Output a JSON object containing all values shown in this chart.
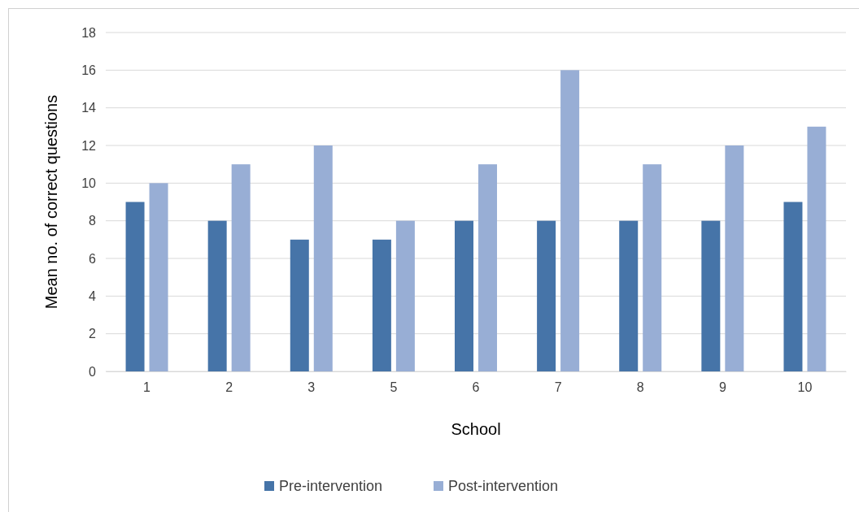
{
  "chart_data": {
    "type": "bar",
    "ylabel": "Mean no. of correct questions",
    "xlabel": "School",
    "categories": [
      "1",
      "2",
      "3",
      "5",
      "6",
      "7",
      "8",
      "9",
      "10"
    ],
    "series": [
      {
        "name": "Pre-intervention",
        "color": "#4674a8",
        "values": [
          9,
          8,
          7,
          7,
          8,
          8,
          8,
          8,
          9
        ]
      },
      {
        "name": "Post-intervention",
        "color": "#98aed5",
        "values": [
          10,
          11,
          12,
          8,
          11,
          16,
          11,
          12,
          13
        ]
      }
    ],
    "ylim": [
      0,
      18
    ],
    "yticks": [
      0,
      2,
      4,
      6,
      8,
      10,
      12,
      14,
      16,
      18
    ],
    "grid": "y",
    "legend": "bottom"
  }
}
